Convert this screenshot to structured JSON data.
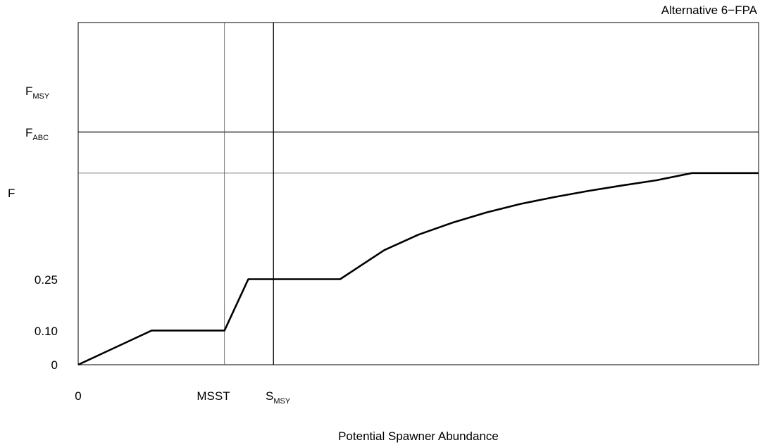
{
  "chart_data": {
    "type": "line",
    "title": "Alternative 6−FPA",
    "xlabel": "Potential Spawner Abundance",
    "ylabel": "F",
    "x_tick_labels": [
      "0",
      "MSST",
      "S_MSY"
    ],
    "y_tick_labels": [
      "0",
      "0.10",
      "0.25",
      "F_ABC",
      "F_MSY"
    ],
    "reference_lines": {
      "horizontal": [
        {
          "label": "F_MSY",
          "y": 0.68,
          "weight": "heavy"
        },
        {
          "label": "F_ABC",
          "y": 0.56,
          "weight": "light"
        }
      ],
      "vertical": [
        {
          "label": "MSST",
          "x": 0.215,
          "weight": "light"
        },
        {
          "label": "S_MSY",
          "x": 0.287,
          "weight": "heavy"
        }
      ]
    },
    "series": [
      {
        "x": [
          0,
          0.02,
          0.04,
          0.06,
          0.08,
          0.108,
          0.215,
          0.25,
          0.3,
          0.385,
          0.45,
          0.5,
          0.55,
          0.6,
          0.65,
          0.7,
          0.75,
          0.8,
          0.85,
          0.902,
          1.0
        ],
        "y": [
          0,
          0.0185,
          0.037,
          0.0556,
          0.0741,
          0.1,
          0.1,
          0.25,
          0.25,
          0.25,
          0.335,
          0.38,
          0.415,
          0.445,
          0.47,
          0.49,
          0.508,
          0.524,
          0.539,
          0.56,
          0.56
        ]
      }
    ],
    "xlim": [
      0,
      1
    ],
    "ylim": [
      0,
      1
    ],
    "grid": false,
    "legend": "none"
  }
}
